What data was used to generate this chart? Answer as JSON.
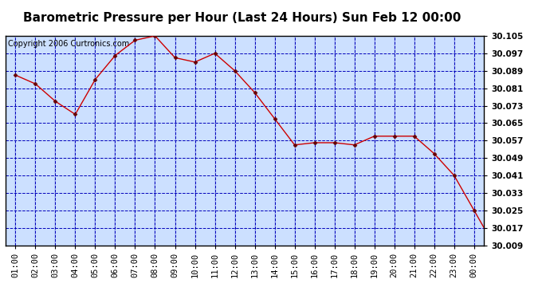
{
  "title": "Barometric Pressure per Hour (Last 24 Hours) Sun Feb 12 00:00",
  "copyright": "Copyright 2006 Curtronics.com",
  "x_labels": [
    "01:00",
    "02:00",
    "03:00",
    "04:00",
    "05:00",
    "06:00",
    "07:00",
    "08:00",
    "09:00",
    "10:00",
    "11:00",
    "12:00",
    "13:00",
    "14:00",
    "15:00",
    "16:00",
    "17:00",
    "18:00",
    "19:00",
    "20:00",
    "21:00",
    "22:00",
    "23:00",
    "00:00"
  ],
  "y_values": [
    30.087,
    30.083,
    30.075,
    30.069,
    30.085,
    30.096,
    30.103,
    30.105,
    30.095,
    30.093,
    30.097,
    30.089,
    30.079,
    30.067,
    30.055,
    30.056,
    30.056,
    30.055,
    30.059,
    30.059,
    30.059,
    30.051,
    30.041,
    30.025,
    30.009
  ],
  "ylim_min": 30.009,
  "ylim_max": 30.105,
  "y_ticks": [
    30.009,
    30.017,
    30.025,
    30.033,
    30.041,
    30.049,
    30.057,
    30.065,
    30.073,
    30.081,
    30.089,
    30.097,
    30.105
  ],
  "line_color": "#cc0000",
  "marker_color": "#660000",
  "bg_color": "#cce0ff",
  "grid_major_color": "#0000bb",
  "grid_minor_color": "#0000bb",
  "title_fontsize": 11,
  "copyright_fontsize": 7,
  "tick_fontsize": 7.5,
  "fig_bg_color": "#ffffff",
  "border_color": "#000000"
}
